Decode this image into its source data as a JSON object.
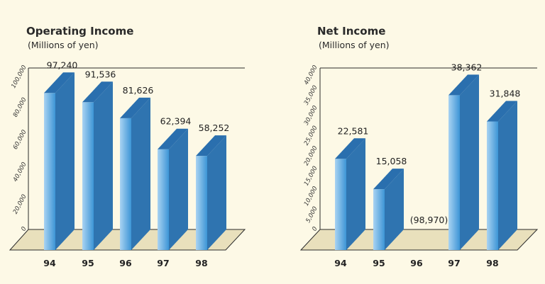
{
  "colors": {
    "background": "#fdf9e6",
    "floor": "#e9e0bc",
    "bar_front_light": "#a9d3f2",
    "bar_front_dark": "#3d95d6",
    "bar_side": "#2f74b0",
    "bar_top": "#2a6fae"
  },
  "chart_data": [
    {
      "type": "bar",
      "title": "Operating Income",
      "subtitle": "(Millions of yen)",
      "categories": [
        "94",
        "95",
        "96",
        "97",
        "98"
      ],
      "values": [
        97240,
        91536,
        81626,
        62394,
        58252
      ],
      "value_labels": [
        "97,240",
        "91,536",
        "81,626",
        "62,394",
        "58,252"
      ],
      "ylim": [
        0,
        100000
      ],
      "yticks": [
        0,
        20000,
        40000,
        60000,
        80000,
        100000
      ],
      "ytick_labels": [
        "0",
        "20,000",
        "40,000",
        "60,000",
        "80,000",
        "100,000"
      ],
      "xlabel": "",
      "ylabel": ""
    },
    {
      "type": "bar",
      "title": "Net Income",
      "subtitle": "(Millions of yen)",
      "categories": [
        "94",
        "95",
        "96",
        "97",
        "98"
      ],
      "values": [
        22581,
        15058,
        -98970,
        38362,
        31848
      ],
      "value_labels": [
        "22,581",
        "15,058",
        "(98,970)",
        "38,362",
        "31,848"
      ],
      "ylim": [
        0,
        40000
      ],
      "yticks": [
        0,
        5000,
        10000,
        15000,
        20000,
        25000,
        30000,
        35000,
        40000
      ],
      "ytick_labels": [
        "0",
        "5,000",
        "10,000",
        "15,000",
        "20,000",
        "25,000",
        "30,000",
        "35,000",
        "40,000"
      ],
      "xlabel": "",
      "ylabel": ""
    }
  ]
}
